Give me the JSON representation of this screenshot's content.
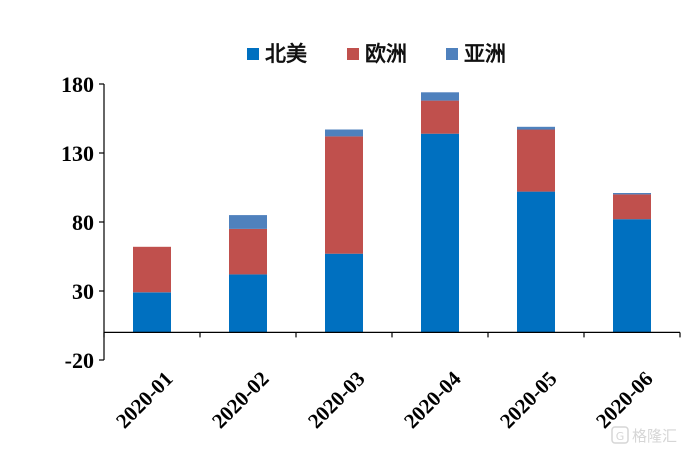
{
  "chart_data": {
    "type": "bar",
    "stacked": true,
    "categories": [
      "2020-01",
      "2020-02",
      "2020-03",
      "2020-04",
      "2020-05",
      "2020-06"
    ],
    "series": [
      {
        "name": "北美",
        "color": "#0070C0",
        "values": [
          29,
          42,
          57,
          144,
          102,
          82
        ]
      },
      {
        "name": "欧洲",
        "color": "#C0504D",
        "values": [
          33,
          33,
          85,
          24,
          45,
          18
        ]
      },
      {
        "name": "亚洲",
        "color": "#4F81BD",
        "values": [
          0,
          10,
          5,
          6,
          2,
          1
        ]
      }
    ],
    "yticks": [
      -20,
      30,
      80,
      130,
      180
    ],
    "ylim": [
      -20,
      180
    ],
    "legend_position": "top",
    "grid": false
  },
  "watermark": {
    "text": "格隆汇",
    "icon": "g-logo-icon"
  }
}
